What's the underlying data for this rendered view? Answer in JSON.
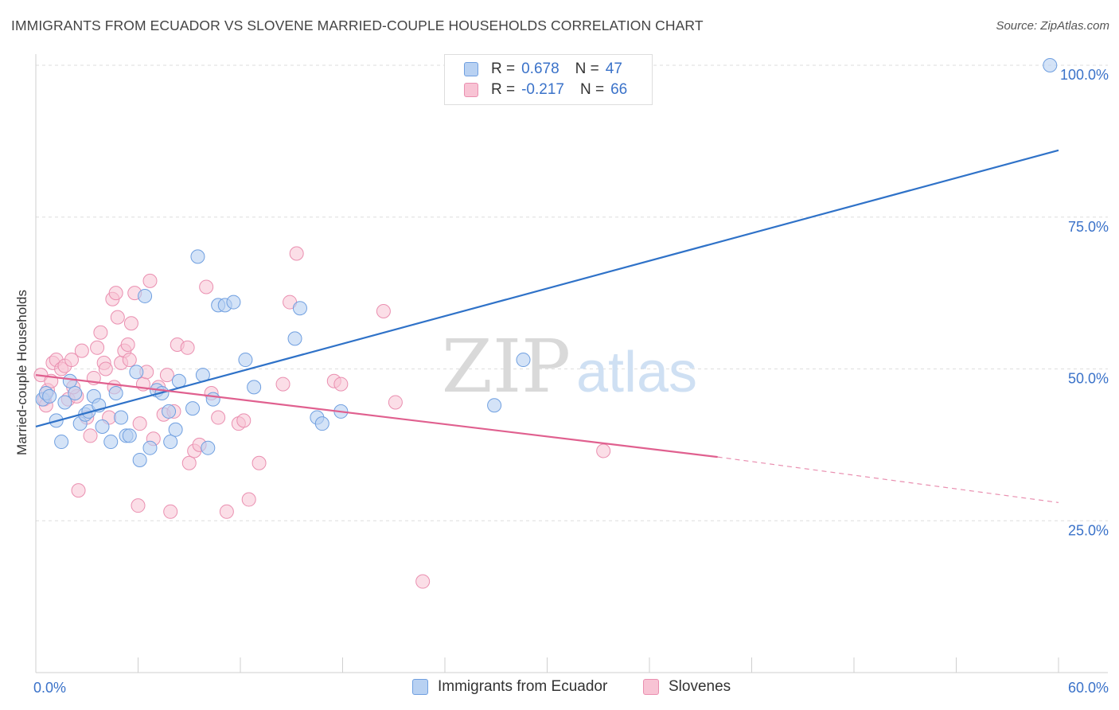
{
  "header": {
    "title": "IMMIGRANTS FROM ECUADOR VS SLOVENE MARRIED-COUPLE HOUSEHOLDS CORRELATION CHART",
    "source": "Source: ZipAtlas.com"
  },
  "watermark": {
    "part1": "ZIP",
    "part2": "atlas"
  },
  "legend": {
    "rows": [
      {
        "r_label": "R =",
        "r_value": "0.678",
        "n_label": "N =",
        "n_value": "47"
      },
      {
        "r_label": "R =",
        "r_value": "-0.217",
        "n_label": "N =",
        "n_value": "66"
      }
    ]
  },
  "colors": {
    "blue_line": "#2f72c8",
    "blue_fill": "#b8d1f2",
    "blue_stroke": "#6f9fe0",
    "pink_line": "#e0608f",
    "pink_fill": "#f8c3d4",
    "pink_stroke": "#ea8fb0",
    "value_text": "#3a72c9"
  },
  "chart_data": {
    "type": "scatter",
    "ylabel": "Married-couple Households",
    "xlim": [
      0,
      60
    ],
    "ylim": [
      0,
      103
    ],
    "x_tick_labels": [
      "0.0%",
      "60.0%"
    ],
    "y_ticks": [
      25,
      50,
      75,
      100
    ],
    "y_tick_labels": [
      "25.0%",
      "50.0%",
      "75.0%",
      "100.0%"
    ],
    "grid": "horizontal-dashed",
    "series": [
      {
        "name": "Immigrants from Ecuador",
        "trend": {
          "x": [
            0,
            60
          ],
          "y": [
            40.5,
            86
          ]
        },
        "points": [
          [
            0.4,
            45.0
          ],
          [
            0.6,
            46.0
          ],
          [
            0.8,
            45.5
          ],
          [
            1.2,
            41.5
          ],
          [
            1.5,
            38.0
          ],
          [
            1.7,
            44.5
          ],
          [
            2.0,
            48.0
          ],
          [
            2.3,
            46.0
          ],
          [
            2.6,
            41.0
          ],
          [
            2.9,
            42.5
          ],
          [
            3.1,
            43.0
          ],
          [
            3.4,
            45.5
          ],
          [
            3.7,
            44.0
          ],
          [
            3.9,
            40.5
          ],
          [
            4.4,
            38.0
          ],
          [
            4.7,
            46.0
          ],
          [
            5.0,
            42.0
          ],
          [
            5.3,
            39.0
          ],
          [
            5.5,
            39.0
          ],
          [
            5.9,
            49.5
          ],
          [
            6.1,
            35.0
          ],
          [
            6.4,
            62.0
          ],
          [
            6.7,
            37.0
          ],
          [
            7.1,
            46.5
          ],
          [
            7.4,
            46.0
          ],
          [
            7.8,
            43.0
          ],
          [
            7.9,
            38.0
          ],
          [
            8.2,
            40.0
          ],
          [
            8.4,
            48.0
          ],
          [
            9.2,
            43.5
          ],
          [
            9.5,
            68.5
          ],
          [
            9.8,
            49.0
          ],
          [
            10.1,
            37.0
          ],
          [
            10.4,
            45.0
          ],
          [
            10.7,
            60.5
          ],
          [
            11.1,
            60.5
          ],
          [
            11.6,
            61.0
          ],
          [
            12.3,
            51.5
          ],
          [
            12.8,
            47.0
          ],
          [
            15.2,
            55.0
          ],
          [
            15.5,
            60.0
          ],
          [
            16.5,
            42.0
          ],
          [
            16.8,
            41.0
          ],
          [
            17.9,
            43.0
          ],
          [
            26.9,
            44.0
          ],
          [
            28.6,
            51.5
          ],
          [
            59.5,
            100.0
          ]
        ]
      },
      {
        "name": "Slovenes",
        "trend": {
          "x": [
            0,
            40
          ],
          "y": [
            49,
            35.5
          ]
        },
        "trend_dashed": {
          "x": [
            40,
            60
          ],
          "y": [
            35.5,
            28.0
          ]
        },
        "points": [
          [
            0.3,
            49.0
          ],
          [
            0.5,
            45.0
          ],
          [
            0.6,
            44.0
          ],
          [
            0.7,
            46.5
          ],
          [
            0.9,
            48.0
          ],
          [
            1.0,
            51.0
          ],
          [
            1.2,
            51.5
          ],
          [
            1.5,
            50.0
          ],
          [
            1.7,
            50.5
          ],
          [
            1.9,
            45.0
          ],
          [
            2.1,
            51.5
          ],
          [
            2.4,
            45.5
          ],
          [
            2.5,
            30.0
          ],
          [
            2.7,
            53.0
          ],
          [
            3.0,
            42.0
          ],
          [
            3.2,
            39.0
          ],
          [
            3.4,
            48.5
          ],
          [
            3.6,
            53.5
          ],
          [
            3.8,
            56.0
          ],
          [
            4.0,
            51.0
          ],
          [
            4.1,
            50.0
          ],
          [
            4.3,
            42.0
          ],
          [
            4.5,
            61.5
          ],
          [
            4.7,
            62.5
          ],
          [
            4.8,
            58.5
          ],
          [
            5.0,
            51.0
          ],
          [
            5.2,
            53.0
          ],
          [
            5.4,
            54.0
          ],
          [
            5.5,
            51.5
          ],
          [
            5.6,
            57.5
          ],
          [
            5.8,
            62.5
          ],
          [
            6.0,
            27.5
          ],
          [
            6.1,
            41.0
          ],
          [
            6.3,
            47.5
          ],
          [
            6.5,
            49.5
          ],
          [
            6.7,
            64.5
          ],
          [
            6.9,
            38.5
          ],
          [
            7.2,
            47.0
          ],
          [
            7.5,
            42.5
          ],
          [
            7.7,
            49.0
          ],
          [
            7.9,
            26.5
          ],
          [
            8.1,
            43.0
          ],
          [
            8.3,
            54.0
          ],
          [
            8.9,
            53.5
          ],
          [
            9.0,
            34.5
          ],
          [
            9.3,
            36.5
          ],
          [
            9.6,
            37.5
          ],
          [
            10.0,
            63.5
          ],
          [
            10.3,
            46.0
          ],
          [
            10.7,
            42.0
          ],
          [
            11.2,
            26.5
          ],
          [
            11.9,
            41.0
          ],
          [
            12.2,
            41.5
          ],
          [
            12.5,
            28.5
          ],
          [
            13.1,
            34.5
          ],
          [
            14.5,
            47.5
          ],
          [
            14.9,
            61.0
          ],
          [
            15.3,
            69.0
          ],
          [
            17.5,
            48.0
          ],
          [
            17.9,
            47.5
          ],
          [
            20.4,
            59.5
          ],
          [
            21.1,
            44.5
          ],
          [
            22.7,
            15.0
          ],
          [
            33.3,
            36.5
          ],
          [
            4.6,
            47.0
          ],
          [
            2.2,
            47.0
          ]
        ]
      }
    ]
  }
}
